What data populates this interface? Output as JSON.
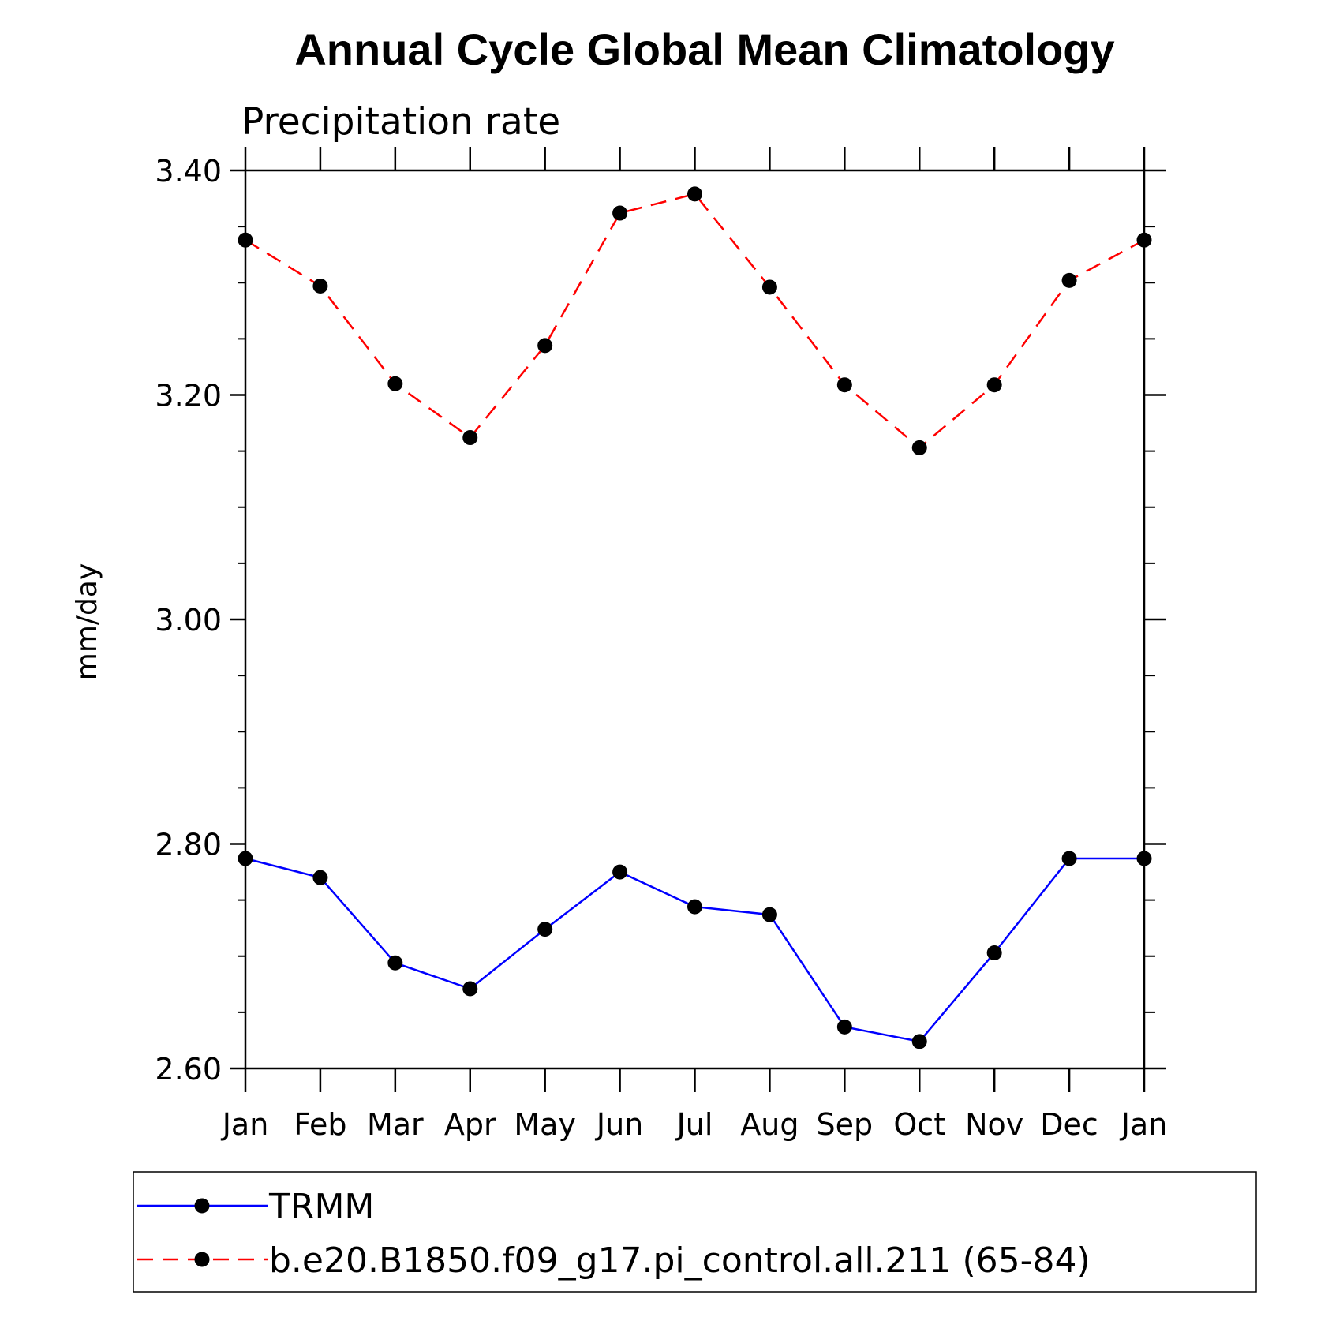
{
  "chart_data": {
    "type": "line",
    "title": "Annual Cycle Global Mean Climatology",
    "subtitle": "Precipitation rate",
    "ylabel": "mm/day",
    "xlabel": "",
    "categories": [
      "Jan",
      "Feb",
      "Mar",
      "Apr",
      "May",
      "Jun",
      "Jul",
      "Aug",
      "Sep",
      "Oct",
      "Nov",
      "Dec",
      "Jan"
    ],
    "ylim": [
      2.6,
      3.4
    ],
    "yticks": [
      "2.60",
      "2.80",
      "3.00",
      "3.20",
      "3.40"
    ],
    "grid": false,
    "legend_position": "bottom",
    "series": [
      {
        "name": "TRMM",
        "color": "#0000ff",
        "line_style": "solid",
        "marker": "filled-circle",
        "values": [
          2.787,
          2.77,
          2.694,
          2.671,
          2.724,
          2.775,
          2.744,
          2.737,
          2.637,
          2.624,
          2.703,
          2.787,
          2.787
        ]
      },
      {
        "name": "b.e20.B1850.f09_g17.pi_control.all.211 (65-84)",
        "color": "#ff0000",
        "line_style": "dashed",
        "marker": "filled-circle",
        "values": [
          3.338,
          3.297,
          3.21,
          3.162,
          3.244,
          3.362,
          3.379,
          3.296,
          3.209,
          3.153,
          3.209,
          3.302,
          3.338
        ]
      }
    ]
  }
}
